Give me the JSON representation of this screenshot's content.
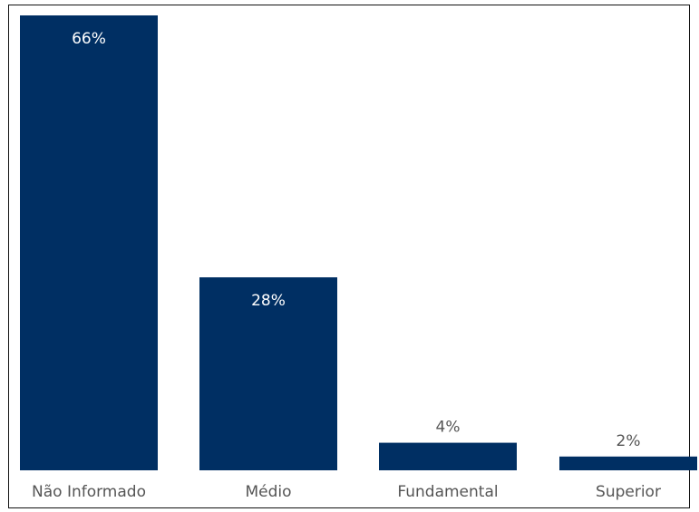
{
  "chart_data": {
    "type": "bar",
    "title": "",
    "xlabel": "",
    "ylabel": "",
    "categories": [
      "Não Informado",
      "Médio",
      "Fundamental",
      "Superior"
    ],
    "values": [
      66,
      28,
      4,
      2
    ],
    "value_labels": [
      "66%",
      "28%",
      "4%",
      "2%"
    ],
    "ylim": [
      0,
      66
    ],
    "grid": false,
    "bar_color": "#002F63"
  }
}
